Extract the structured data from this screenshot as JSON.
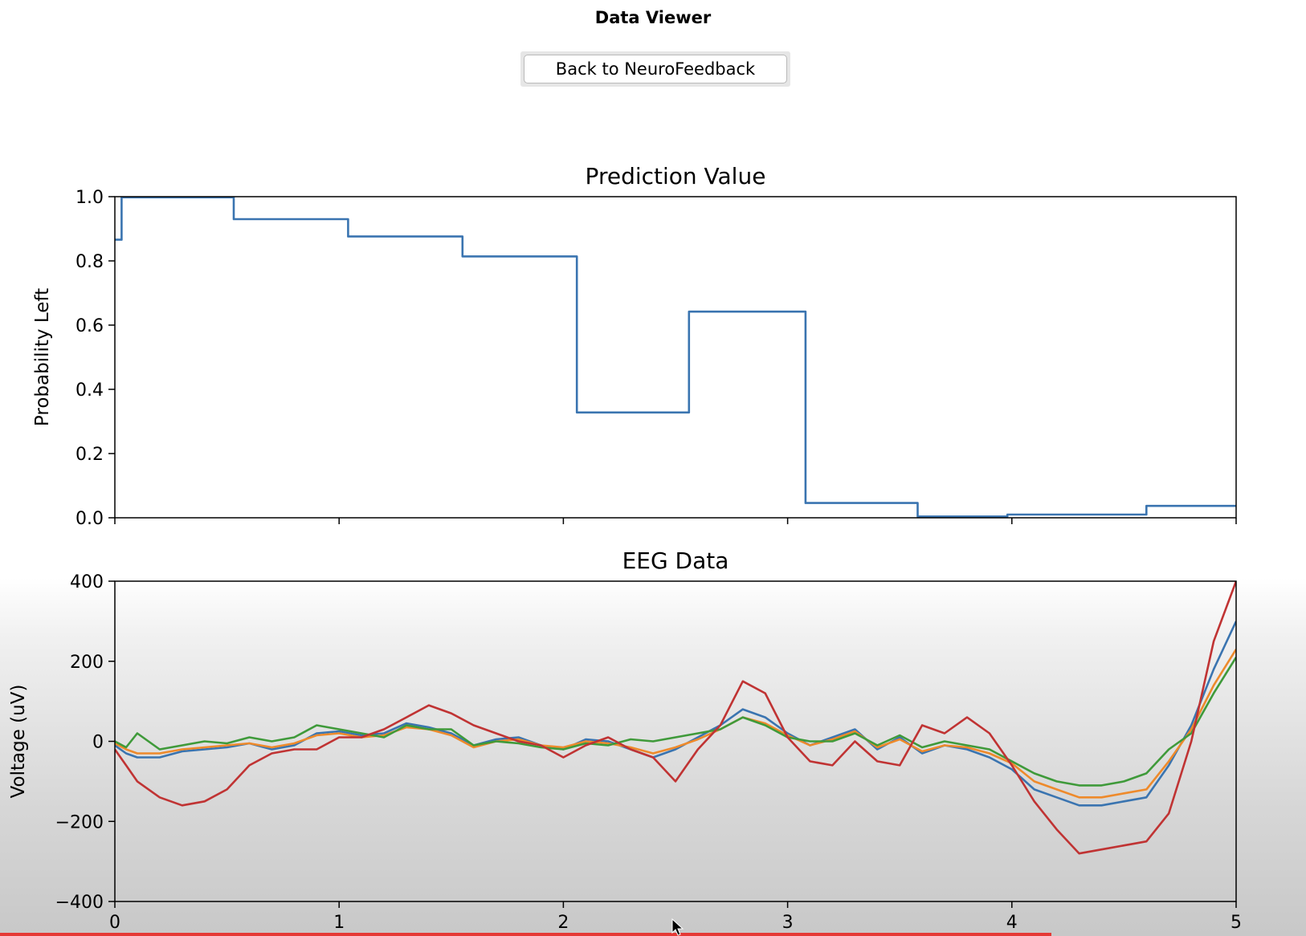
{
  "app": {
    "title": "Data Viewer",
    "back_button_label": "Back to NeuroFeedback"
  },
  "video_progress_fraction": 0.805,
  "chart_data": [
    {
      "type": "line",
      "title": "Prediction Value",
      "xlabel": "",
      "ylabel": "Probability Left",
      "xlim": [
        0,
        5
      ],
      "ylim": [
        0,
        1.0
      ],
      "xticks": [
        0,
        1,
        2,
        3,
        4,
        5
      ],
      "xtick_labels_visible": false,
      "yticks": [
        0.0,
        0.2,
        0.4,
        0.6,
        0.8,
        1.0
      ],
      "ytick_labels": [
        "0.0",
        "0.2",
        "0.4",
        "0.6",
        "0.8",
        "1.0"
      ],
      "grid": false,
      "step": true,
      "series": [
        {
          "color": "#3a74b0",
          "x": [
            0.0,
            0.03,
            0.03,
            0.53,
            0.53,
            1.04,
            1.04,
            1.55,
            1.55,
            2.06,
            2.06,
            2.56,
            2.56,
            3.08,
            3.08,
            3.58,
            3.58,
            3.98,
            3.98,
            4.6,
            4.6,
            5.0
          ],
          "y": [
            0.866,
            0.866,
            0.998,
            0.998,
            0.93,
            0.93,
            0.876,
            0.876,
            0.814,
            0.814,
            0.328,
            0.328,
            0.642,
            0.642,
            0.046,
            0.046,
            0.004,
            0.004,
            0.01,
            0.01,
            0.037,
            0.037
          ]
        }
      ]
    },
    {
      "type": "line",
      "title": "EEG Data",
      "xlabel": "",
      "ylabel": "Voltage (uV)",
      "xlim": [
        0,
        5
      ],
      "ylim": [
        -400,
        400
      ],
      "xticks": [
        0,
        1,
        2,
        3,
        4,
        5
      ],
      "xtick_labels": [
        "0",
        "1",
        "2",
        "3",
        "4",
        "5"
      ],
      "yticks": [
        -400,
        -200,
        0,
        200,
        400
      ],
      "ytick_labels": [
        "−400",
        "−200",
        "0",
        "200",
        "400"
      ],
      "grid": false,
      "series": [
        {
          "color": "#3a74b0",
          "x": [
            0,
            0.05,
            0.1,
            0.2,
            0.3,
            0.4,
            0.5,
            0.6,
            0.7,
            0.8,
            0.9,
            1.0,
            1.1,
            1.2,
            1.3,
            1.4,
            1.5,
            1.6,
            1.7,
            1.8,
            1.9,
            2.0,
            2.1,
            2.2,
            2.3,
            2.4,
            2.5,
            2.6,
            2.7,
            2.8,
            2.9,
            3.0,
            3.1,
            3.2,
            3.3,
            3.4,
            3.5,
            3.6,
            3.7,
            3.8,
            3.9,
            4.0,
            4.1,
            4.2,
            4.3,
            4.4,
            4.5,
            4.6,
            4.7,
            4.8,
            4.9,
            5.0
          ],
          "y": [
            -10,
            -30,
            -40,
            -40,
            -25,
            -20,
            -15,
            -5,
            -20,
            -10,
            20,
            25,
            15,
            20,
            45,
            35,
            20,
            -10,
            5,
            10,
            -10,
            -20,
            5,
            0,
            -20,
            -40,
            -20,
            10,
            40,
            80,
            60,
            20,
            -10,
            10,
            30,
            -20,
            10,
            -30,
            -10,
            -20,
            -40,
            -70,
            -120,
            -140,
            -160,
            -160,
            -150,
            -140,
            -60,
            40,
            180,
            300
          ]
        },
        {
          "color": "#ee8a2b",
          "x": [
            0,
            0.05,
            0.1,
            0.2,
            0.3,
            0.4,
            0.5,
            0.6,
            0.7,
            0.8,
            0.9,
            1.0,
            1.1,
            1.2,
            1.3,
            1.4,
            1.5,
            1.6,
            1.7,
            1.8,
            1.9,
            2.0,
            2.1,
            2.2,
            2.3,
            2.4,
            2.5,
            2.6,
            2.7,
            2.8,
            2.9,
            3.0,
            3.1,
            3.2,
            3.3,
            3.4,
            3.5,
            3.6,
            3.7,
            3.8,
            3.9,
            4.0,
            4.1,
            4.2,
            4.3,
            4.4,
            4.5,
            4.6,
            4.7,
            4.8,
            4.9,
            5.0
          ],
          "y": [
            -5,
            -20,
            -30,
            -30,
            -20,
            -15,
            -10,
            -5,
            -15,
            -5,
            15,
            20,
            10,
            15,
            35,
            30,
            15,
            -15,
            0,
            5,
            -10,
            -15,
            0,
            -5,
            -15,
            -30,
            -15,
            5,
            30,
            60,
            45,
            15,
            -10,
            5,
            25,
            -15,
            5,
            -25,
            -10,
            -15,
            -30,
            -55,
            -100,
            -120,
            -140,
            -140,
            -130,
            -120,
            -50,
            30,
            140,
            230
          ]
        },
        {
          "color": "#3f9a3a",
          "x": [
            0,
            0.05,
            0.1,
            0.2,
            0.3,
            0.4,
            0.5,
            0.6,
            0.7,
            0.8,
            0.9,
            1.0,
            1.1,
            1.2,
            1.3,
            1.4,
            1.5,
            1.6,
            1.7,
            1.8,
            1.9,
            2.0,
            2.1,
            2.2,
            2.3,
            2.4,
            2.5,
            2.6,
            2.7,
            2.8,
            2.9,
            3.0,
            3.1,
            3.2,
            3.3,
            3.4,
            3.5,
            3.6,
            3.7,
            3.8,
            3.9,
            4.0,
            4.1,
            4.2,
            4.3,
            4.4,
            4.5,
            4.6,
            4.7,
            4.8,
            4.9,
            5.0
          ],
          "y": [
            0,
            -15,
            20,
            -20,
            -10,
            0,
            -5,
            10,
            0,
            10,
            40,
            30,
            20,
            10,
            40,
            30,
            30,
            -10,
            0,
            -5,
            -15,
            -20,
            -5,
            -10,
            5,
            0,
            10,
            20,
            30,
            60,
            40,
            10,
            0,
            0,
            20,
            -10,
            15,
            -15,
            0,
            -10,
            -20,
            -50,
            -80,
            -100,
            -110,
            -110,
            -100,
            -80,
            -20,
            20,
            120,
            210
          ]
        },
        {
          "color": "#c03333",
          "x": [
            0,
            0.05,
            0.1,
            0.2,
            0.3,
            0.4,
            0.5,
            0.6,
            0.7,
            0.8,
            0.9,
            1.0,
            1.1,
            1.2,
            1.3,
            1.4,
            1.5,
            1.6,
            1.7,
            1.8,
            1.9,
            2.0,
            2.1,
            2.2,
            2.3,
            2.4,
            2.5,
            2.6,
            2.7,
            2.8,
            2.9,
            3.0,
            3.1,
            3.2,
            3.3,
            3.4,
            3.5,
            3.6,
            3.7,
            3.8,
            3.9,
            4.0,
            4.1,
            4.2,
            4.3,
            4.4,
            4.5,
            4.6,
            4.7,
            4.8,
            4.9,
            5.0
          ],
          "y": [
            -20,
            -60,
            -100,
            -140,
            -160,
            -150,
            -120,
            -60,
            -30,
            -20,
            -20,
            10,
            10,
            30,
            60,
            90,
            70,
            40,
            20,
            0,
            -10,
            -40,
            -10,
            10,
            -20,
            -40,
            -100,
            -20,
            40,
            150,
            120,
            10,
            -50,
            -60,
            0,
            -50,
            -60,
            40,
            20,
            60,
            20,
            -60,
            -150,
            -220,
            -280,
            -270,
            -260,
            -250,
            -180,
            0,
            250,
            400
          ]
        }
      ]
    }
  ]
}
